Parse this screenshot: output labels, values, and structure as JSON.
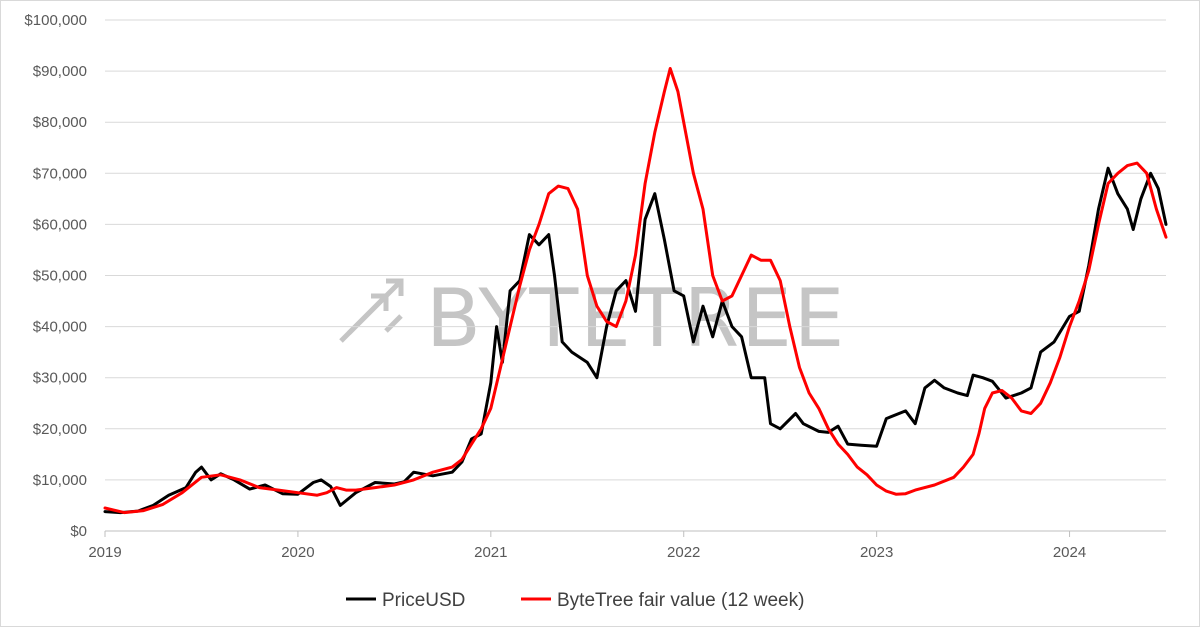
{
  "watermark": {
    "text": "BYTETREE"
  },
  "chart_data": {
    "type": "line",
    "title": "",
    "xlabel": "",
    "ylabel": "",
    "xlim": [
      2019.0,
      2024.5
    ],
    "ylim": [
      0,
      100000
    ],
    "x_ticks": [
      2019,
      2020,
      2021,
      2022,
      2023,
      2024
    ],
    "x_tick_labels": [
      "2019",
      "2020",
      "2021",
      "2022",
      "2023",
      "2024"
    ],
    "y_ticks": [
      0,
      10000,
      20000,
      30000,
      40000,
      50000,
      60000,
      70000,
      80000,
      90000,
      100000
    ],
    "y_tick_labels": [
      "$0",
      "$10,000",
      "$20,000",
      "$30,000",
      "$40,000",
      "$50,000",
      "$60,000",
      "$70,000",
      "$80,000",
      "$90,000",
      "$100,000"
    ],
    "grid": "horizontal",
    "legend": "bottom",
    "series": [
      {
        "name": "PriceUSD",
        "color": "#000000",
        "points": [
          [
            2019.0,
            3800
          ],
          [
            2019.08,
            3600
          ],
          [
            2019.17,
            3900
          ],
          [
            2019.25,
            5000
          ],
          [
            2019.33,
            7000
          ],
          [
            2019.42,
            8500
          ],
          [
            2019.47,
            11500
          ],
          [
            2019.5,
            12500
          ],
          [
            2019.55,
            10000
          ],
          [
            2019.6,
            11200
          ],
          [
            2019.67,
            10000
          ],
          [
            2019.75,
            8200
          ],
          [
            2019.83,
            9000
          ],
          [
            2019.92,
            7300
          ],
          [
            2020.0,
            7200
          ],
          [
            2020.08,
            9500
          ],
          [
            2020.12,
            10000
          ],
          [
            2020.17,
            8700
          ],
          [
            2020.22,
            5000
          ],
          [
            2020.3,
            7500
          ],
          [
            2020.4,
            9500
          ],
          [
            2020.5,
            9200
          ],
          [
            2020.55,
            9600
          ],
          [
            2020.6,
            11500
          ],
          [
            2020.7,
            10800
          ],
          [
            2020.8,
            11500
          ],
          [
            2020.85,
            13500
          ],
          [
            2020.9,
            18000
          ],
          [
            2020.95,
            19000
          ],
          [
            2021.0,
            29000
          ],
          [
            2021.03,
            40000
          ],
          [
            2021.06,
            33000
          ],
          [
            2021.1,
            47000
          ],
          [
            2021.15,
            49000
          ],
          [
            2021.2,
            58000
          ],
          [
            2021.25,
            56000
          ],
          [
            2021.3,
            58000
          ],
          [
            2021.33,
            50000
          ],
          [
            2021.37,
            37000
          ],
          [
            2021.42,
            35000
          ],
          [
            2021.5,
            33000
          ],
          [
            2021.55,
            30000
          ],
          [
            2021.6,
            40000
          ],
          [
            2021.65,
            47000
          ],
          [
            2021.7,
            49000
          ],
          [
            2021.75,
            43000
          ],
          [
            2021.8,
            61000
          ],
          [
            2021.85,
            66000
          ],
          [
            2021.9,
            57000
          ],
          [
            2021.95,
            47000
          ],
          [
            2022.0,
            46000
          ],
          [
            2022.05,
            37000
          ],
          [
            2022.1,
            44000
          ],
          [
            2022.15,
            38000
          ],
          [
            2022.2,
            45000
          ],
          [
            2022.25,
            40000
          ],
          [
            2022.3,
            38000
          ],
          [
            2022.35,
            30000
          ],
          [
            2022.42,
            30000
          ],
          [
            2022.45,
            21000
          ],
          [
            2022.5,
            20000
          ],
          [
            2022.58,
            23000
          ],
          [
            2022.62,
            21000
          ],
          [
            2022.7,
            19500
          ],
          [
            2022.75,
            19300
          ],
          [
            2022.8,
            20500
          ],
          [
            2022.85,
            17000
          ],
          [
            2022.92,
            16800
          ],
          [
            2023.0,
            16600
          ],
          [
            2023.05,
            22000
          ],
          [
            2023.15,
            23500
          ],
          [
            2023.2,
            21000
          ],
          [
            2023.25,
            28000
          ],
          [
            2023.3,
            29500
          ],
          [
            2023.35,
            28000
          ],
          [
            2023.42,
            27000
          ],
          [
            2023.47,
            26500
          ],
          [
            2023.5,
            30500
          ],
          [
            2023.55,
            30000
          ],
          [
            2023.6,
            29300
          ],
          [
            2023.67,
            26000
          ],
          [
            2023.75,
            27000
          ],
          [
            2023.8,
            28000
          ],
          [
            2023.85,
            35000
          ],
          [
            2023.92,
            37000
          ],
          [
            2024.0,
            42000
          ],
          [
            2024.05,
            43000
          ],
          [
            2024.1,
            52000
          ],
          [
            2024.15,
            63000
          ],
          [
            2024.2,
            71000
          ],
          [
            2024.25,
            66000
          ],
          [
            2024.3,
            63000
          ],
          [
            2024.33,
            59000
          ],
          [
            2024.37,
            65000
          ],
          [
            2024.42,
            70000
          ],
          [
            2024.46,
            67000
          ],
          [
            2024.5,
            60000
          ]
        ]
      },
      {
        "name": "ByteTree fair value (12 week)",
        "color": "#ff0000",
        "points": [
          [
            2019.0,
            4500
          ],
          [
            2019.1,
            3600
          ],
          [
            2019.2,
            4000
          ],
          [
            2019.3,
            5200
          ],
          [
            2019.4,
            7500
          ],
          [
            2019.5,
            10500
          ],
          [
            2019.6,
            11000
          ],
          [
            2019.7,
            10000
          ],
          [
            2019.8,
            8500
          ],
          [
            2019.9,
            8000
          ],
          [
            2020.0,
            7500
          ],
          [
            2020.1,
            7000
          ],
          [
            2020.15,
            7500
          ],
          [
            2020.2,
            8500
          ],
          [
            2020.25,
            8000
          ],
          [
            2020.3,
            8000
          ],
          [
            2020.4,
            8500
          ],
          [
            2020.5,
            9000
          ],
          [
            2020.6,
            10000
          ],
          [
            2020.7,
            11500
          ],
          [
            2020.8,
            12500
          ],
          [
            2020.85,
            14000
          ],
          [
            2020.9,
            17000
          ],
          [
            2020.95,
            20000
          ],
          [
            2021.0,
            24000
          ],
          [
            2021.05,
            32000
          ],
          [
            2021.1,
            40000
          ],
          [
            2021.15,
            48000
          ],
          [
            2021.2,
            55000
          ],
          [
            2021.25,
            60000
          ],
          [
            2021.3,
            66000
          ],
          [
            2021.35,
            67500
          ],
          [
            2021.4,
            67000
          ],
          [
            2021.45,
            63000
          ],
          [
            2021.5,
            50000
          ],
          [
            2021.55,
            44000
          ],
          [
            2021.6,
            41000
          ],
          [
            2021.65,
            40000
          ],
          [
            2021.7,
            45000
          ],
          [
            2021.75,
            54000
          ],
          [
            2021.8,
            68000
          ],
          [
            2021.85,
            78000
          ],
          [
            2021.9,
            86000
          ],
          [
            2021.93,
            90500
          ],
          [
            2021.97,
            86000
          ],
          [
            2022.0,
            80000
          ],
          [
            2022.05,
            70000
          ],
          [
            2022.1,
            63000
          ],
          [
            2022.15,
            50000
          ],
          [
            2022.2,
            45000
          ],
          [
            2022.25,
            46000
          ],
          [
            2022.3,
            50000
          ],
          [
            2022.35,
            54000
          ],
          [
            2022.4,
            53000
          ],
          [
            2022.45,
            53000
          ],
          [
            2022.5,
            49000
          ],
          [
            2022.55,
            40000
          ],
          [
            2022.6,
            32000
          ],
          [
            2022.65,
            27000
          ],
          [
            2022.7,
            24000
          ],
          [
            2022.75,
            20000
          ],
          [
            2022.8,
            17000
          ],
          [
            2022.85,
            15000
          ],
          [
            2022.9,
            12500
          ],
          [
            2022.95,
            11000
          ],
          [
            2023.0,
            9000
          ],
          [
            2023.05,
            7800
          ],
          [
            2023.1,
            7200
          ],
          [
            2023.15,
            7300
          ],
          [
            2023.2,
            8000
          ],
          [
            2023.3,
            9000
          ],
          [
            2023.4,
            10500
          ],
          [
            2023.45,
            12500
          ],
          [
            2023.5,
            15000
          ],
          [
            2023.53,
            19000
          ],
          [
            2023.56,
            24000
          ],
          [
            2023.6,
            27000
          ],
          [
            2023.65,
            27500
          ],
          [
            2023.7,
            26000
          ],
          [
            2023.75,
            23500
          ],
          [
            2023.8,
            23000
          ],
          [
            2023.85,
            25000
          ],
          [
            2023.9,
            29000
          ],
          [
            2023.95,
            34000
          ],
          [
            2024.0,
            40000
          ],
          [
            2024.05,
            45000
          ],
          [
            2024.1,
            51000
          ],
          [
            2024.15,
            60000
          ],
          [
            2024.2,
            68000
          ],
          [
            2024.25,
            70000
          ],
          [
            2024.3,
            71500
          ],
          [
            2024.35,
            72000
          ],
          [
            2024.4,
            70000
          ],
          [
            2024.45,
            63000
          ],
          [
            2024.5,
            57500
          ]
        ]
      }
    ]
  }
}
